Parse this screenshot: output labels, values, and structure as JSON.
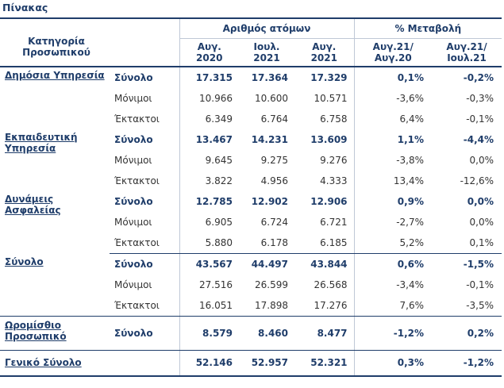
{
  "caption": "Πίνακας",
  "header": {
    "category": "Κατηγορία Προσωπικού",
    "group_people": "Αριθμός ατόμων",
    "group_change": "% Μεταβολή",
    "col1": "Αυγ. 2020",
    "col2": "Ιουλ. 2021",
    "col3": "Αυγ. 2021",
    "col4": "Αυγ.21/ Αυγ.20",
    "col5": "Αυγ.21/ Ιουλ.21"
  },
  "sections": [
    {
      "label": "Δημόσια Υπηρεσία",
      "rows": [
        {
          "type": "Σύνολο",
          "v": [
            "17.315",
            "17.364",
            "17.329"
          ],
          "p": [
            "0,1%",
            "-0,2%"
          ]
        },
        {
          "type": "Μόνιμοι",
          "v": [
            "10.966",
            "10.600",
            "10.571"
          ],
          "p": [
            "-3,6%",
            "-0,3%"
          ]
        },
        {
          "type": "Έκτακτοι",
          "v": [
            "6.349",
            "6.764",
            "6.758"
          ],
          "p": [
            "6,4%",
            "-0,1%"
          ]
        }
      ]
    },
    {
      "label": "Εκπαιδευτική Υπηρεσία",
      "rows": [
        {
          "type": "Σύνολο",
          "v": [
            "13.467",
            "14.231",
            "13.609"
          ],
          "p": [
            "1,1%",
            "-4,4%"
          ]
        },
        {
          "type": "Μόνιμοι",
          "v": [
            "9.645",
            "9.275",
            "9.276"
          ],
          "p": [
            "-3,8%",
            "0,0%"
          ]
        },
        {
          "type": "Έκτακτοι",
          "v": [
            "3.822",
            "4.956",
            "4.333"
          ],
          "p": [
            "13,4%",
            "-12,6%"
          ]
        }
      ]
    },
    {
      "label": "Δυνάμεις Ασφαλείας",
      "rows": [
        {
          "type": "Σύνολο",
          "v": [
            "12.785",
            "12.902",
            "12.906"
          ],
          "p": [
            "0,9%",
            "0,0%"
          ]
        },
        {
          "type": "Μόνιμοι",
          "v": [
            "6.905",
            "6.724",
            "6.721"
          ],
          "p": [
            "-2,7%",
            "0,0%"
          ]
        },
        {
          "type": "Έκτακτοι",
          "v": [
            "5.880",
            "6.178",
            "6.185"
          ],
          "p": [
            "5,2%",
            "0,1%"
          ]
        }
      ]
    },
    {
      "label": "Σύνολο",
      "rows": [
        {
          "type": "Σύνολο",
          "v": [
            "43.567",
            "44.497",
            "43.844"
          ],
          "p": [
            "0,6%",
            "-1,5%"
          ]
        },
        {
          "type": "Μόνιμοι",
          "v": [
            "27.516",
            "26.599",
            "26.568"
          ],
          "p": [
            "-3,4%",
            "-0,1%"
          ]
        },
        {
          "type": "Έκτακτοι",
          "v": [
            "16.051",
            "17.898",
            "17.276"
          ],
          "p": [
            "7,6%",
            "-3,5%"
          ]
        }
      ]
    },
    {
      "label": "Ωρομίσθιο Προσωπικό",
      "rows": [
        {
          "type": "Σύνολο",
          "v": [
            "8.579",
            "8.460",
            "8.477"
          ],
          "p": [
            "-1,2%",
            "0,2%"
          ]
        }
      ]
    }
  ],
  "grand_total": {
    "label": "Γενικό Σύνολο",
    "v": [
      "52.146",
      "52.957",
      "52.321"
    ],
    "p": [
      "0,3%",
      "-1,2%"
    ]
  }
}
